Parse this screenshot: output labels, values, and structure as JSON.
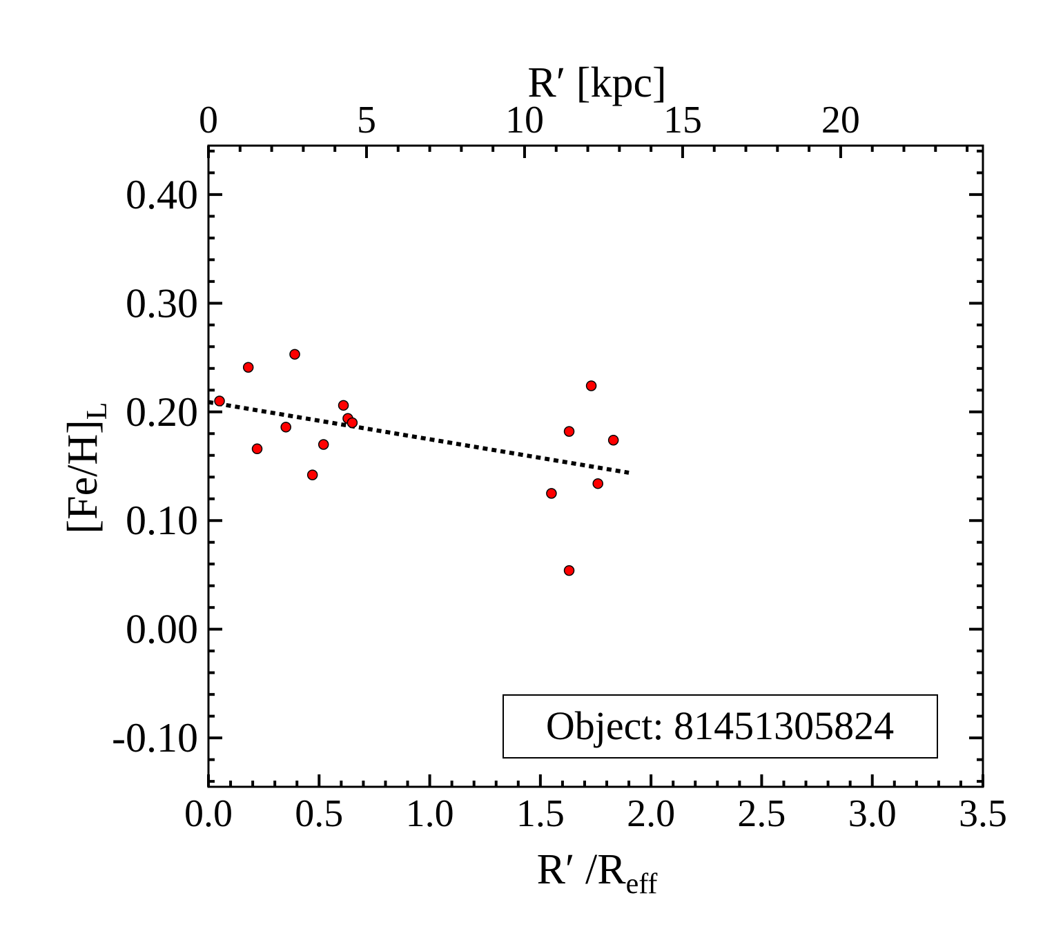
{
  "chart_data": {
    "type": "scatter",
    "title": "",
    "xlabel": {
      "main": "R′ /R",
      "sub": "eff"
    },
    "ylabel": {
      "main": "[Fe/H]",
      "sub": "L"
    },
    "x2label": "R′ [kpc]",
    "xlim": [
      0.0,
      3.5
    ],
    "ylim": [
      -0.145,
      0.445
    ],
    "x2lim": [
      0,
      24.5
    ],
    "xticks": [
      {
        "v": 0.0,
        "label": "0.0"
      },
      {
        "v": 0.5,
        "label": "0.5"
      },
      {
        "v": 1.0,
        "label": "1.0"
      },
      {
        "v": 1.5,
        "label": "1.5"
      },
      {
        "v": 2.0,
        "label": "2.0"
      },
      {
        "v": 2.5,
        "label": "2.5"
      },
      {
        "v": 3.0,
        "label": "3.0"
      },
      {
        "v": 3.5,
        "label": "3.5"
      }
    ],
    "x2ticks": [
      {
        "v": 0,
        "label": "0"
      },
      {
        "v": 5,
        "label": "5"
      },
      {
        "v": 10,
        "label": "10"
      },
      {
        "v": 15,
        "label": "15"
      },
      {
        "v": 20,
        "label": "20"
      }
    ],
    "yticks": [
      {
        "v": -0.1,
        "label": "-0.10"
      },
      {
        "v": 0.0,
        "label": "0.00"
      },
      {
        "v": 0.1,
        "label": "0.10"
      },
      {
        "v": 0.2,
        "label": "0.20"
      },
      {
        "v": 0.3,
        "label": "0.30"
      },
      {
        "v": 0.4,
        "label": "0.40"
      }
    ],
    "points": [
      {
        "x": 0.05,
        "y": 0.21
      },
      {
        "x": 0.18,
        "y": 0.241
      },
      {
        "x": 0.22,
        "y": 0.166
      },
      {
        "x": 0.35,
        "y": 0.186
      },
      {
        "x": 0.39,
        "y": 0.253
      },
      {
        "x": 0.47,
        "y": 0.142
      },
      {
        "x": 0.52,
        "y": 0.17
      },
      {
        "x": 0.61,
        "y": 0.206
      },
      {
        "x": 0.63,
        "y": 0.194
      },
      {
        "x": 0.65,
        "y": 0.19
      },
      {
        "x": 1.55,
        "y": 0.125
      },
      {
        "x": 1.63,
        "y": 0.182
      },
      {
        "x": 1.63,
        "y": 0.054
      },
      {
        "x": 1.73,
        "y": 0.224
      },
      {
        "x": 1.76,
        "y": 0.134
      },
      {
        "x": 1.83,
        "y": 0.174
      }
    ],
    "fit_line": {
      "x": [
        0.0,
        1.9
      ],
      "y": [
        0.209,
        0.144
      ],
      "style": "dotted"
    },
    "marker_color": "#ff0000",
    "grid": false,
    "legend": {
      "text": "Object: 81451305824",
      "placement": "bottom-right"
    }
  }
}
